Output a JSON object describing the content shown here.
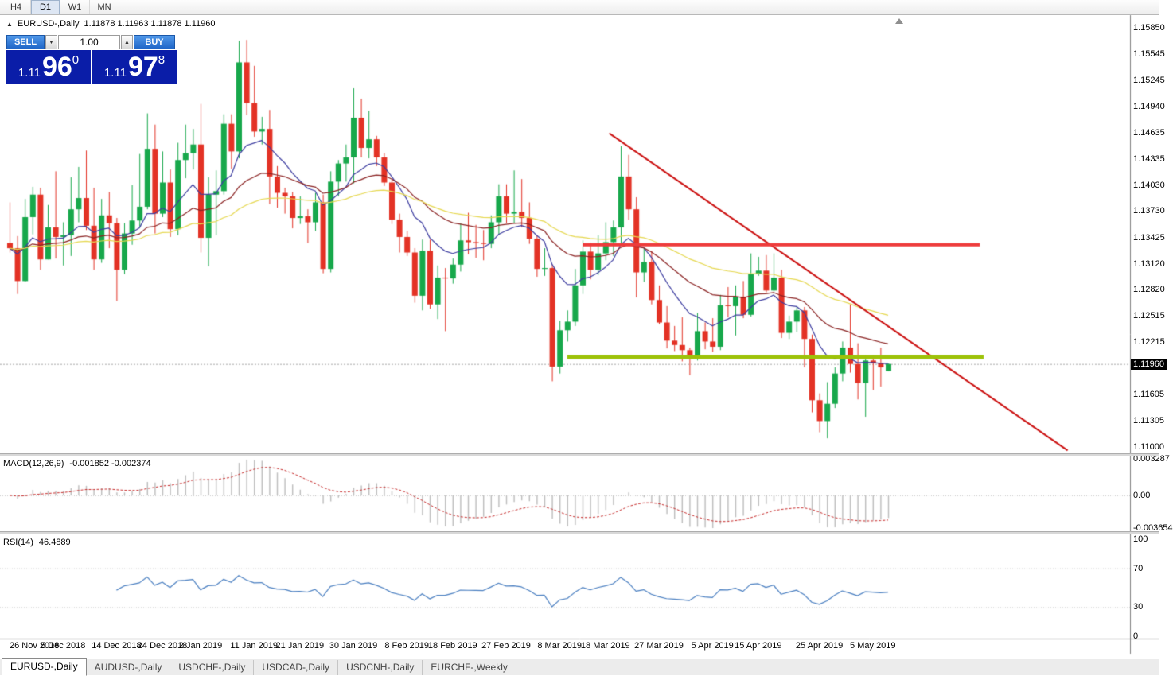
{
  "toolbar": {
    "periods": [
      {
        "label": "H4",
        "active": false
      },
      {
        "label": "D1",
        "active": true
      },
      {
        "label": "W1",
        "active": false
      },
      {
        "label": "MN",
        "active": false
      }
    ]
  },
  "chart_header": {
    "symbol": "EURUSD-,Daily",
    "ohlc": "1.11878 1.11963 1.11878 1.11960"
  },
  "icons": {
    "triangle_up": "▲",
    "triangle_down": "▼",
    "toggle": "▲"
  },
  "one_click": {
    "sell_label": "SELL",
    "buy_label": "BUY",
    "volume": "1.00",
    "sell_price": {
      "small": "1.11",
      "big": "96",
      "sup": "0"
    },
    "buy_price": {
      "small": "1.11",
      "big": "97",
      "sup": "8"
    },
    "button_color": "#2E7BD6",
    "panel_color": "#0A1DA8"
  },
  "price_axis": {
    "labels": [
      "1.15850",
      "1.15545",
      "1.15245",
      "1.14940",
      "1.14635",
      "1.14335",
      "1.14030",
      "1.13730",
      "1.13425",
      "1.13120",
      "1.12820",
      "1.12515",
      "1.12215",
      "1.11605",
      "1.11305",
      "1.11000"
    ],
    "current": "1.11960"
  },
  "time_axis": {
    "labels": [
      {
        "t": "26 Nov 2018",
        "i": 0
      },
      {
        "t": "5 Dec 2018",
        "i": 7
      },
      {
        "t": "14 Dec 2018",
        "i": 14
      },
      {
        "t": "24 Dec 2018",
        "i": 20
      },
      {
        "t": "2 Jan 2019",
        "i": 25
      },
      {
        "t": "11 Jan 2019",
        "i": 32
      },
      {
        "t": "21 Jan 2019",
        "i": 38
      },
      {
        "t": "30 Jan 2019",
        "i": 45
      },
      {
        "t": "8 Feb 2019",
        "i": 52
      },
      {
        "t": "18 Feb 2019",
        "i": 58
      },
      {
        "t": "27 Feb 2019",
        "i": 65
      },
      {
        "t": "8 Mar 2019",
        "i": 72
      },
      {
        "t": "18 Mar 2019",
        "i": 78
      },
      {
        "t": "27 Mar 2019",
        "i": 85
      },
      {
        "t": "5 Apr 2019",
        "i": 92
      },
      {
        "t": "15 Apr 2019",
        "i": 98
      },
      {
        "t": "25 Apr 2019",
        "i": 106
      },
      {
        "t": "5 May 2019",
        "i": 113
      }
    ]
  },
  "indicators": {
    "macd": {
      "title": "MACD(12,26,9)",
      "values": "-0.001852 -0.002374",
      "axis_labels": [
        "0.003287",
        "0.00",
        "-0.003654"
      ]
    },
    "rsi": {
      "title": "RSI(14)",
      "value": "46.4889",
      "axis_labels": [
        "100",
        "70",
        "30",
        "0"
      ],
      "axis_values": [
        100,
        70,
        30,
        0
      ],
      "levels": [
        70,
        30
      ]
    }
  },
  "tabs": [
    {
      "label": "EURUSD-,Daily",
      "active": true
    },
    {
      "label": "AUDUSD-,Daily",
      "active": false
    },
    {
      "label": "USDCHF-,Daily",
      "active": false
    },
    {
      "label": "USDCAD-,Daily",
      "active": false
    },
    {
      "label": "USDCNH-,Daily",
      "active": false
    },
    {
      "label": "EURCHF-,Weekly",
      "active": false
    }
  ],
  "chart_data": {
    "type": "candlestick",
    "symbol": "EURUSD",
    "timeframe": "Daily",
    "y_range": {
      "min": 1.11,
      "max": 1.1585
    },
    "colors": {
      "up": "#17A84B",
      "down": "#E33225",
      "macd_hist": "#BDBDBD",
      "macd_signal": "#C72B2B",
      "rsi": "#4A7FC1",
      "bid": "#A9A9A9",
      "background": "#FFFFFF",
      "axis_text": "#000000"
    },
    "moving_averages": [
      {
        "period": 10,
        "type": "ema",
        "color": "#3C3CA0"
      },
      {
        "period": 25,
        "type": "ema",
        "color": "#8B2323"
      },
      {
        "period": 50,
        "type": "ema",
        "color": "#E6D850"
      }
    ],
    "macd": {
      "fast": 12,
      "slow": 26,
      "signal": 9
    },
    "rsi_period": 14,
    "objects": {
      "trendline": {
        "color": "#CC1111",
        "width": 2,
        "i1": 78.5,
        "p1": 1.1463,
        "i2": 138.5,
        "p2": 1.1096
      },
      "resistance_line": {
        "color": "#EE3B3B",
        "width": 4,
        "price": 1.1334,
        "i1": 75,
        "i2": 127
      },
      "support_line": {
        "color": "#9DC209",
        "width": 5,
        "price": 1.1204,
        "i1": 73,
        "i2": 127.5
      },
      "bid_line": {
        "color": "#A9A9A9",
        "price": 1.1196
      }
    },
    "candles": [
      [
        "2018-11-26",
        1.1336,
        1.1383,
        1.1325,
        1.133
      ],
      [
        "2018-11-27",
        1.133,
        1.1344,
        1.1277,
        1.1292
      ],
      [
        "2018-11-28",
        1.1292,
        1.1387,
        1.1291,
        1.1366
      ],
      [
        "2018-11-29",
        1.1366,
        1.1401,
        1.1346,
        1.1392
      ],
      [
        "2018-11-30",
        1.1392,
        1.14,
        1.1305,
        1.1317
      ],
      [
        "2018-12-03",
        1.1317,
        1.138,
        1.1317,
        1.1354
      ],
      [
        "2018-12-04",
        1.1354,
        1.1419,
        1.1318,
        1.1343
      ],
      [
        "2018-12-05",
        1.1343,
        1.136,
        1.131,
        1.1345
      ],
      [
        "2018-12-06",
        1.1345,
        1.1412,
        1.1321,
        1.1375
      ],
      [
        "2018-12-07",
        1.1375,
        1.1424,
        1.136,
        1.1388
      ],
      [
        "2018-12-10",
        1.1388,
        1.1443,
        1.1351,
        1.1356
      ],
      [
        "2018-12-11",
        1.1356,
        1.14,
        1.1305,
        1.1317
      ],
      [
        "2018-12-12",
        1.1317,
        1.1387,
        1.1313,
        1.1368
      ],
      [
        "2018-12-13",
        1.1368,
        1.1395,
        1.133,
        1.1359
      ],
      [
        "2018-12-14",
        1.1359,
        1.1365,
        1.1269,
        1.1305
      ],
      [
        "2018-12-17",
        1.1305,
        1.1359,
        1.13,
        1.1347
      ],
      [
        "2018-12-18",
        1.1347,
        1.1403,
        1.1334,
        1.1362
      ],
      [
        "2018-12-19",
        1.1362,
        1.1439,
        1.1355,
        1.1378
      ],
      [
        "2018-12-20",
        1.1378,
        1.1486,
        1.1375,
        1.1445
      ],
      [
        "2018-12-21",
        1.1445,
        1.1473,
        1.1347,
        1.137
      ],
      [
        "2018-12-24",
        1.137,
        1.1442,
        1.1366,
        1.1406
      ],
      [
        "2018-12-26",
        1.1406,
        1.1421,
        1.1343,
        1.1352
      ],
      [
        "2018-12-27",
        1.1352,
        1.1452,
        1.1345,
        1.1432
      ],
      [
        "2018-12-28",
        1.1432,
        1.1473,
        1.1411,
        1.144
      ],
      [
        "2018-12-31",
        1.144,
        1.1468,
        1.1421,
        1.145
      ],
      [
        "2019-01-02",
        1.145,
        1.1497,
        1.1325,
        1.1342
      ],
      [
        "2019-01-03",
        1.1342,
        1.1412,
        1.1309,
        1.1392
      ],
      [
        "2019-01-04",
        1.1392,
        1.142,
        1.1345,
        1.1396
      ],
      [
        "2019-01-07",
        1.1396,
        1.1485,
        1.1392,
        1.1474
      ],
      [
        "2019-01-08",
        1.1474,
        1.1485,
        1.1422,
        1.1442
      ],
      [
        "2019-01-09",
        1.1442,
        1.157,
        1.1434,
        1.1545
      ],
      [
        "2019-01-10",
        1.1545,
        1.1571,
        1.1484,
        1.1498
      ],
      [
        "2019-01-11",
        1.1498,
        1.1541,
        1.1459,
        1.1465
      ],
      [
        "2019-01-14",
        1.1465,
        1.1482,
        1.145,
        1.1468
      ],
      [
        "2019-01-15",
        1.1468,
        1.149,
        1.1381,
        1.1413
      ],
      [
        "2019-01-16",
        1.1413,
        1.1425,
        1.1377,
        1.1394
      ],
      [
        "2019-01-17",
        1.1394,
        1.14,
        1.137,
        1.139
      ],
      [
        "2019-01-18",
        1.139,
        1.1395,
        1.1353,
        1.1365
      ],
      [
        "2019-01-21",
        1.1365,
        1.139,
        1.1358,
        1.1367
      ],
      [
        "2019-01-22",
        1.1367,
        1.1375,
        1.1336,
        1.136
      ],
      [
        "2019-01-23",
        1.136,
        1.1394,
        1.135,
        1.1383
      ],
      [
        "2019-01-24",
        1.1383,
        1.1392,
        1.1301,
        1.1306
      ],
      [
        "2019-01-25",
        1.1306,
        1.1419,
        1.1302,
        1.1407
      ],
      [
        "2019-01-28",
        1.1407,
        1.1432,
        1.139,
        1.1428
      ],
      [
        "2019-01-29",
        1.1428,
        1.145,
        1.1407,
        1.1435
      ],
      [
        "2019-01-30",
        1.1435,
        1.1515,
        1.1405,
        1.1481
      ],
      [
        "2019-01-31",
        1.1481,
        1.1503,
        1.1435,
        1.1446
      ],
      [
        "2019-02-01",
        1.1446,
        1.1489,
        1.1434,
        1.1456
      ],
      [
        "2019-02-04",
        1.1456,
        1.146,
        1.1425,
        1.1435
      ],
      [
        "2019-02-05",
        1.1435,
        1.144,
        1.1402,
        1.1406
      ],
      [
        "2019-02-06",
        1.1406,
        1.141,
        1.1358,
        1.1363
      ],
      [
        "2019-02-07",
        1.1363,
        1.137,
        1.1325,
        1.1343
      ],
      [
        "2019-02-08",
        1.1343,
        1.135,
        1.1321,
        1.1325
      ],
      [
        "2019-02-11",
        1.1325,
        1.133,
        1.1267,
        1.1275
      ],
      [
        "2019-02-12",
        1.1275,
        1.134,
        1.1258,
        1.1327
      ],
      [
        "2019-02-13",
        1.1327,
        1.134,
        1.126,
        1.1265
      ],
      [
        "2019-02-14",
        1.1265,
        1.131,
        1.1248,
        1.1296
      ],
      [
        "2019-02-15",
        1.1296,
        1.1307,
        1.1234,
        1.1295
      ],
      [
        "2019-02-18",
        1.1295,
        1.1318,
        1.1289,
        1.1311
      ],
      [
        "2019-02-19",
        1.1311,
        1.1359,
        1.1303,
        1.1339
      ],
      [
        "2019-02-20",
        1.1339,
        1.1371,
        1.1323,
        1.1337
      ],
      [
        "2019-02-21",
        1.1337,
        1.1357,
        1.1319,
        1.1336
      ],
      [
        "2019-02-22",
        1.1336,
        1.1351,
        1.1316,
        1.1335
      ],
      [
        "2019-02-25",
        1.1335,
        1.1368,
        1.133,
        1.136
      ],
      [
        "2019-02-26",
        1.136,
        1.1404,
        1.1345,
        1.139
      ],
      [
        "2019-02-27",
        1.139,
        1.1404,
        1.1359,
        1.137
      ],
      [
        "2019-02-28",
        1.137,
        1.142,
        1.1359,
        1.1372
      ],
      [
        "2019-03-01",
        1.1372,
        1.141,
        1.1354,
        1.1365
      ],
      [
        "2019-03-04",
        1.1365,
        1.1383,
        1.1335,
        1.1341
      ],
      [
        "2019-03-05",
        1.1341,
        1.1345,
        1.1297,
        1.1306
      ],
      [
        "2019-03-06",
        1.1306,
        1.133,
        1.1298,
        1.1307
      ],
      [
        "2019-03-07",
        1.1307,
        1.1311,
        1.1176,
        1.1193
      ],
      [
        "2019-03-08",
        1.1193,
        1.1246,
        1.1185,
        1.1235
      ],
      [
        "2019-03-11",
        1.1235,
        1.1258,
        1.1222,
        1.1245
      ],
      [
        "2019-03-12",
        1.1245,
        1.1306,
        1.124,
        1.1287
      ],
      [
        "2019-03-13",
        1.1287,
        1.1339,
        1.1277,
        1.1326
      ],
      [
        "2019-03-14",
        1.1326,
        1.1336,
        1.1294,
        1.1305
      ],
      [
        "2019-03-15",
        1.1305,
        1.1345,
        1.1299,
        1.1324
      ],
      [
        "2019-03-18",
        1.1324,
        1.136,
        1.1316,
        1.1337
      ],
      [
        "2019-03-19",
        1.1337,
        1.1362,
        1.1321,
        1.1354
      ],
      [
        "2019-03-20",
        1.1354,
        1.1448,
        1.1334,
        1.1413
      ],
      [
        "2019-03-21",
        1.1413,
        1.1438,
        1.1363,
        1.1375
      ],
      [
        "2019-03-22",
        1.1375,
        1.1389,
        1.1273,
        1.1302
      ],
      [
        "2019-03-25",
        1.1302,
        1.133,
        1.1291,
        1.1314
      ],
      [
        "2019-03-26",
        1.1314,
        1.1327,
        1.1265,
        1.127
      ],
      [
        "2019-03-27",
        1.127,
        1.1287,
        1.1242,
        1.1244
      ],
      [
        "2019-03-28",
        1.1244,
        1.1263,
        1.1214,
        1.1223
      ],
      [
        "2019-03-29",
        1.1223,
        1.124,
        1.1211,
        1.1218
      ],
      [
        "2019-04-01",
        1.1218,
        1.125,
        1.1199,
        1.1212
      ],
      [
        "2019-04-02",
        1.1212,
        1.1215,
        1.1183,
        1.1204
      ],
      [
        "2019-04-03",
        1.1204,
        1.1255,
        1.12,
        1.1234
      ],
      [
        "2019-04-04",
        1.1234,
        1.1244,
        1.1213,
        1.1222
      ],
      [
        "2019-04-05",
        1.1222,
        1.1249,
        1.121,
        1.1216
      ],
      [
        "2019-04-08",
        1.1216,
        1.1276,
        1.1212,
        1.1264
      ],
      [
        "2019-04-09",
        1.1264,
        1.1285,
        1.125,
        1.1263
      ],
      [
        "2019-04-10",
        1.1263,
        1.1287,
        1.1229,
        1.1274
      ],
      [
        "2019-04-11",
        1.1274,
        1.1292,
        1.1249,
        1.1253
      ],
      [
        "2019-04-12",
        1.1253,
        1.1324,
        1.1251,
        1.13
      ],
      [
        "2019-04-15",
        1.13,
        1.132,
        1.1298,
        1.1304
      ],
      [
        "2019-04-16",
        1.1304,
        1.1322,
        1.1279,
        1.1281
      ],
      [
        "2019-04-17",
        1.1281,
        1.1324,
        1.128,
        1.1296
      ],
      [
        "2019-04-18",
        1.1296,
        1.1305,
        1.1226,
        1.1232
      ],
      [
        "2019-04-19",
        1.1232,
        1.1252,
        1.1225,
        1.1245
      ],
      [
        "2019-04-22",
        1.1245,
        1.1262,
        1.1233,
        1.1258
      ],
      [
        "2019-04-23",
        1.1258,
        1.1262,
        1.1192,
        1.1225
      ],
      [
        "2019-04-24",
        1.1225,
        1.123,
        1.114,
        1.1154
      ],
      [
        "2019-04-25",
        1.1154,
        1.1162,
        1.1117,
        1.113
      ],
      [
        "2019-04-26",
        1.113,
        1.1175,
        1.111,
        1.115
      ],
      [
        "2019-04-29",
        1.115,
        1.1192,
        1.1145,
        1.1185
      ],
      [
        "2019-04-30",
        1.1185,
        1.1222,
        1.1176,
        1.1215
      ],
      [
        "2019-05-01",
        1.1215,
        1.1265,
        1.1186,
        1.1196
      ],
      [
        "2019-05-02",
        1.1196,
        1.122,
        1.1155,
        1.1174
      ],
      [
        "2019-05-03",
        1.1174,
        1.1206,
        1.1135,
        1.12
      ],
      [
        "2019-05-06",
        1.12,
        1.1206,
        1.1166,
        1.1197
      ],
      [
        "2019-05-07",
        1.1197,
        1.1215,
        1.117,
        1.1192
      ],
      [
        "2019-05-08",
        1.11878,
        1.11963,
        1.11878,
        1.1196
      ]
    ]
  }
}
